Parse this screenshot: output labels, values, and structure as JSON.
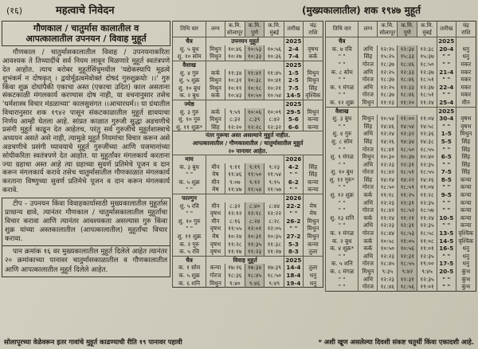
{
  "page": {
    "page_number": "(१६)",
    "title_left": "महत्वाचे निवेदन",
    "title_right": "(मुख्यकालातील) शक १९४७ मुहूर्त"
  },
  "left_panel": {
    "box_title_line1": "गौणकाल / चातुर्मास कालातील व",
    "box_title_line2": "आपत्कालातील उपनयन / विवाह मुहूर्त",
    "paragraph": "गौणकाल / चातुर्मासकालातील विवाह / उपनयनाकरिता आवश्यक ते तिथ्यादींचे सर्व नियम लावून मिळणारे मुहूर्त स्वतंत्रपणे देत आहोत. त्याच बरोबर मुहूर्तसिंधुमधील 'यद्येकस्यापि मूढत्वे शुभंकर्म न दोषकृत् । द्वयोर्मूढत्वमेवोक्तं दोषदं गुरुशुक्रयोः ।।' गुरु किंवा शुक्र दोघांपैकी एकाचा अस्त (एकाचा उदित) काल असताना संकटकाळी मंगलकार्य करण्यास दोष नाही, या वचनानुसार तसेच 'धर्मशास्त्र विचार मंडळाच्या' कालसुसंगत ।।आचारधर्म।। या ग्रंथातील विचारानुसार शक १९४२ पासून संकटकाळातील मुहूर्त द्यावयाचा निर्णय आम्ही घेतला आहे. सांप्रत काळात गुरुजी सुद्धा अडचणीचे प्रसंगी मुहूर्त काढून देत आहेतच, परंतु सर्व गुरुजींचे मुहूर्तशास्त्राचे अध्ययन असते असे नाही, त्यामुळे मुहूर्त नियमांचा विचार करून असे अडचणीचे प्रसंगी घ्यावयाचे मुहूर्त गुरुजींच्या आणि यजमानांच्या सोयीकरिता स्वतंत्रपणे देत आहोत. या मुहूर्तांवर मंगलकार्य करताना ज्या ग्रहाचा अस्त आहे त्या ग्रहाच्या सुवर्ण प्रतिमेचे पूजन व दान करून मंगलकार्य करावे तसेच चातुर्मासातील गौणकाळात मंगलकार्य करताना विष्णुच्या सुवर्ण प्रतिमेचे पूजन व दान करून मंगलकार्य करावे.",
    "note": "टीप - उपनयन किंवा विवाहकार्यासाठी मुख्यकालातील मुहूर्तास प्राधान्य द्यावे, त्यानंतर गौणकाल / चातुर्मासकालातील मुहूर्तांचा विचार करावा आणि त्यानंतर आवश्यकता असल्यास गुरु किंवा शुक्र यांच्या अस्तकालातील (आपत्कालातील) मुहूर्तांचा विचार करावा.",
    "page_ref": "पान क्रमांक १६ वर मुख्यकालातील मुहूर्त दिलेले आहेत त्यानंतर २० क्रमांकाच्या पानावर चातुर्मासकाळातील व गौणकालातील आणि आपत्कालातील मुहूर्त दिलेले आहेत."
  },
  "footer": {
    "left": "सोलापूरच्या वेळेवरून इतर गावांचे मुहूर्त काढण्याची रीति १९ पानावर पहावी",
    "right": "* अशी खूण असलेल्या दिवशी संकष्ट चतुर्थी किंवा एकादशी आहे."
  },
  "colors": {
    "paper": "#cdc9ba",
    "ink": "#1d1b14",
    "pune_column_shade": "#b9b49f",
    "border": "#3c3a2e"
  },
  "tables": {
    "columns": [
      "तिथि वार",
      "लग्न",
      "क.मि.\nसोलापूर",
      "क.मि.\nपुणे",
      "क.मि.\nमुंबई",
      "तारीख",
      "चंद्र\nराशि"
    ],
    "middle": {
      "sections": [
        {
          "month": "चैत्र",
          "label": "उपनयन मुहूर्त",
          "year": "2025",
          "rows": [
            [
              "शु. ५ बुध",
              "मिथुन",
              "१०:४६",
              "१०:५३",
              "१०:५६",
              "2-4",
              "वृषभ"
            ],
            [
              "शु. १० सोम",
              "मिथुन",
              "१०:२७",
              "१०:३३",
              "१०:३६",
              "7-4",
              "कर्क"
            ]
          ]
        },
        {
          "month": "वैशाख",
          "label": "",
          "year": "2025",
          "rows": [
            [
              "शु. ४ गुरु",
              "कर्क",
              "११:३४",
              "११:४१",
              "११:४५",
              "1-5",
              "मिथुन"
            ],
            [
              "शु. ५ शुक्र",
              "मिथुन",
              "१०:३१",
              "१०:३८",
              "१०:४१",
              "2-5",
              "मिथुन"
            ],
            [
              "शु. १० बुध",
              "मिथुन",
              "१०:११",
              "१०:१८",
              "१०:२१",
              "7-5",
              "सिंह"
            ],
            [
              "क. २ बुध",
              "कर्क",
              "१०:४३",
              "१०:५०",
              "१०:५४",
              "14-5",
              "वृश्चिक"
            ]
          ]
        },
        {
          "month": "ज्येष्ठ",
          "label": "",
          "year": "2025",
          "rows": [
            [
              "शु. ३ गुरु",
              "कर्क",
              "९:५९",
              "१०:०६",
              "१०:०९",
              "29-5",
              "मिथुन"
            ],
            [
              "शु. १० गुरु",
              "मिथुन",
              "८:३२",
              "८:३९",
              "८:४२",
              "5-6",
              "कन्या"
            ],
            [
              "शु. ११ शुक्र*",
              "सिंह",
              "१२:२०",
              "१२:२८",
              "१२:३२",
              "6-6",
              "कन्या"
            ]
          ],
          "note": [
            "नंतर गुरूचा अस्त असल्याने मुहूर्त नाहीत.",
            "आपत्कालातील / गौणकालातील / चातुर्मासातील मुहूर्त",
            "२० पानावर आहेत."
          ]
        },
        {
          "month": "माघ",
          "label": "",
          "year": "2026",
          "rows": [
            [
              "क. ३ बुध",
              "मीन",
              "९:११",
              "९:१९",
              "९:२३",
              "4-2",
              "सिंह"
            ],
            [
              "\"  \"",
              "मेष",
              "११:४६",
              "११:५०",
              "११:५४",
              "\" \"",
              "सिंह"
            ],
            [
              "क. ५ शुक्र",
              "मीन",
              "९:०७",
              "९:१२",
              "९:१५",
              "6-2",
              "कन्या"
            ],
            [
              "\"  \"",
              "मेष",
              "११:४७",
              "११:५४",
              "११:५७",
              "\" \"",
              "कन्या"
            ]
          ]
        },
        {
          "month": "फाल्गुन",
          "label": "",
          "year": "2026",
          "rows": [
            [
              "शु. ५ रवि",
              "मीन",
              "८:३२",
              "८:४०",
              "८:४४",
              "22-2",
              "मेष"
            ],
            [
              "\"  \"",
              "वृषभ",
              "१२:१२",
              "१२:१८",
              "१२:२२",
              "\" \"",
              "मेष"
            ],
            [
              "शु. १० गुरु",
              "मीन",
              "८:१६",
              "८:२४",
              "८:२८",
              "26-2",
              "मिथुन"
            ],
            [
              "\"  \"",
              "वृषभ",
              "११:५५",
              "१२:०१",
              "१२:०५",
              "\" \"",
              "मिथुन"
            ],
            [
              "शु. ११ शुक्र",
              "मेष",
              "१०:२४",
              "१०:३१",
              "१०:३५",
              "27-2",
              "मिथुन"
            ],
            [
              "क. २ गुरु",
              "वृषभ",
              "११:२८",
              "११:३५",
              "११:३८",
              "5-3",
              "कन्या"
            ],
            [
              "क. ५ रवि",
              "वृषभ",
              "११:१७",
              "११:२३",
              "११:२७",
              "8-3",
              "तुला"
            ]
          ]
        },
        {
          "month": "चैत्र",
          "label": "विवाह मुहूर्त",
          "year": "2025",
          "rows": [
            [
              "क. १ सोम",
              "कन्या",
              "१७:२६",
              "१७:३४",
              "१७:३९",
              "14-4",
              "तुला"
            ],
            [
              "क. ५ शुक्र",
              "गोरज",
              "१८:३६",
              "१८:४५",
              "१८:५०",
              "18-4",
              "धनु"
            ],
            [
              "क. ६ शनि",
              "मिथुन",
              "९:४०",
              "९:४६",
              "९:४९",
              "19-4",
              "धनु"
            ]
          ]
        }
      ]
    },
    "right": {
      "sections": [
        {
          "month": "चैत्र",
          "label": "",
          "year": "2025",
          "rows": [
            [
              "क. ७ रवि",
              "अभि",
              "१२:२५",
              "१२:३४",
              "१२:३८",
              "20-4",
              "धनु"
            ],
            [
              "\"  \"",
              "सिंह",
              "१५:२५",
              "१५:३३",
              "१५:३७",
              "\" \"",
              "धनु"
            ],
            [
              "\"  \"",
              "गोरज",
              "१८:३७",
              "१८:४६",
              "१८:५०",
              "\" \"",
              "मकर"
            ],
            [
              "क. ८ सोम",
              "अभि",
              "१२:२५",
              "१२:३३",
              "१२:३७",
              "21-4",
              "मकर"
            ],
            [
              "\"  \"",
              "गोरज",
              "१८:३७",
              "१८:४६",
              "१८:५१",
              "\" \"",
              "मकर"
            ],
            [
              "क. ९ मंगळ",
              "अभि",
              "१२:२५",
              "१२:३३",
              "१२:३७",
              "22-4",
              "मकर"
            ],
            [
              "\"  \"",
              "गोरज",
              "१८:३७",
              "१८:४६",
              "१८:५१",
              "\" \"",
              "मकर"
            ],
            [
              "क. १२ शुक्र",
              "मिथुन",
              "११:१३",
              "११:२०",
              "११:२४",
              "25-4",
              "मीन"
            ]
          ]
        },
        {
          "month": "वैशाख",
          "label": "",
          "year": "2025",
          "rows": [
            [
              "शु. ३ बुध",
              "मिथुन",
              "१०:५४",
              "११:००",
              "११:०४",
              "30-4",
              "वृषभ"
            ],
            [
              "\"  \"",
              "सिंह",
              "१४:४६",
              "१४:५४",
              "१४:५८",
              "\" \"",
              "वृषभ"
            ],
            [
              "शु. ४ गुरु",
              "अभि",
              "१२:२४",
              "१२:३२",
              "१२:३६",
              "1-5",
              "मिथुन"
            ],
            [
              "शु. ८ सोम",
              "सिंह",
              "१४:२६",
              "१४:३४",
              "१४:३८",
              "5-5",
              "सिंह"
            ],
            [
              "\"  \"",
              "गोरज",
              "१८:४१",
              "१८:५०",
              "१८:५५",
              "\" \"",
              "सिंह"
            ],
            [
              "शु. ९ मंगळ",
              "मिथुन",
              "१०:३०",
              "१०:३७",
              "१०:४०",
              "6-5",
              "सिंह"
            ],
            [
              "\"  \"",
              "अभि",
              "१२:२३",
              "१२:३१",
              "१२:३५",
              "\" \"",
              "सिंह"
            ],
            [
              "शु. १० बुध",
              "गोरज",
              "१८:४२",
              "१८:५१",
              "१८:५५",
              "7-5",
              "सिंह"
            ],
            [
              "शु. ११ गुरु*",
              "सिंह",
              "१४:१४",
              "१४:२२",
              "१४:२६",
              "8-5",
              "कन्या"
            ],
            [
              "\"  \"",
              "गोरज",
              "१८:५०",
              "१८:५९",
              "१९:०४",
              "\" \"",
              "कन्या"
            ],
            [
              "शु. १२ शुक्र",
              "कर्क",
              "११:१८",
              "११:२५",
              "११:२८",
              "9-5",
              "कन्या"
            ],
            [
              "\"  \"",
              "अभि",
              "१२:२३",
              "१२:३१",
              "१२:३५",
              "\" \"",
              "कन्या"
            ],
            [
              "\"  \"",
              "गोरज",
              "१८:४२",
              "१८:५२",
              "१८:५७",
              "\" \"",
              "कन्या"
            ],
            [
              "शु. १३ शनि",
              "कर्क",
              "११:१४",
              "११:२१",
              "११:२४",
              "10-5",
              "कन्या"
            ],
            [
              "\"  \"",
              "अभि",
              "१२:२३",
              "१२:३१",
              "१२:३५",
              "\" \"",
              "कन्या"
            ],
            [
              "क. १ मंगळ",
              "गोरज",
              "१८:४४",
              "१८:५३",
              "१८:५८",
              "13-5",
              "वृश्चिक"
            ],
            [
              "क. २ बुध",
              "कर्क",
              "१०:५८",
              "११:०५",
              "११:०८",
              "14-5",
              "वृश्चिक"
            ],
            [
              "क. ४ शुक्र*",
              "कर्क",
              "१०:५०",
              "१०:५६",
              "११:०१",
              "16-5",
              "धनु"
            ],
            [
              "\"  \"",
              "अभि",
              "१२:२३",
              "१२:३१",
              "१२:३५",
              "\" \"",
              "धनु"
            ],
            [
              "क. ५ शनि",
              "गोरज",
              "१८:४५",
              "१८:५५",
              "१९:००",
              "17-5",
              "धनु"
            ],
            [
              "क. ८ मंगळ",
              "मिथुन",
              "९:३५",
              "९:४२",
              "९:४५",
              "20-5",
              "कुंभ"
            ],
            [
              "\"  \"",
              "अभि",
              "१२:२३",
              "१२:३१",
              "१२:३५",
              "\" \"",
              "कुंभ"
            ],
            [
              "\"  \"",
              "गोरज",
              "१८:४६",
              "१८:५६",
              "१९:०१",
              "\" \"",
              "कुंभ"
            ]
          ]
        }
      ]
    }
  }
}
